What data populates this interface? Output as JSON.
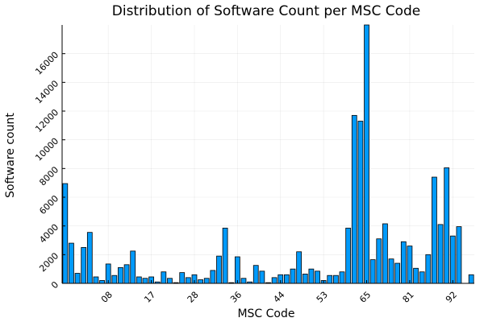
{
  "chart_data": {
    "type": "bar",
    "title": "Distribution of Software Count per MSC Code",
    "xlabel": "MSC Code",
    "ylabel": "Software count",
    "bar_color": "#009AFA",
    "grid": true,
    "legend": "none",
    "ylim": [
      0,
      18000
    ],
    "yticks": [
      0,
      2000,
      4000,
      6000,
      8000,
      10000,
      12000,
      14000,
      16000
    ],
    "ytick_labels": [
      "0",
      "2000",
      "4000",
      "6000",
      "8000",
      "10000",
      "12000",
      "14000",
      "16000"
    ],
    "xticks": [
      {
        "index": 7,
        "label": "08"
      },
      {
        "index": 14,
        "label": "17"
      },
      {
        "index": 21,
        "label": "28"
      },
      {
        "index": 28,
        "label": "36"
      },
      {
        "index": 35,
        "label": "44"
      },
      {
        "index": 42,
        "label": "53"
      },
      {
        "index": 49,
        "label": "65"
      },
      {
        "index": 56,
        "label": "81"
      },
      {
        "index": 63,
        "label": "92"
      }
    ],
    "values": [
      6950,
      2800,
      700,
      2500,
      3550,
      450,
      200,
      1350,
      550,
      1100,
      1300,
      2250,
      450,
      350,
      450,
      100,
      800,
      350,
      50,
      750,
      400,
      600,
      250,
      350,
      900,
      1900,
      3850,
      50,
      1850,
      350,
      100,
      1250,
      850,
      50,
      400,
      600,
      600,
      1000,
      2200,
      650,
      1000,
      850,
      200,
      550,
      550,
      800,
      3850,
      11700,
      11300,
      18000,
      1650,
      3100,
      4150,
      1700,
      1400,
      2900,
      2600,
      1050,
      800,
      2000,
      7400,
      4100,
      8050,
      3300,
      3950,
      0,
      600
    ]
  }
}
